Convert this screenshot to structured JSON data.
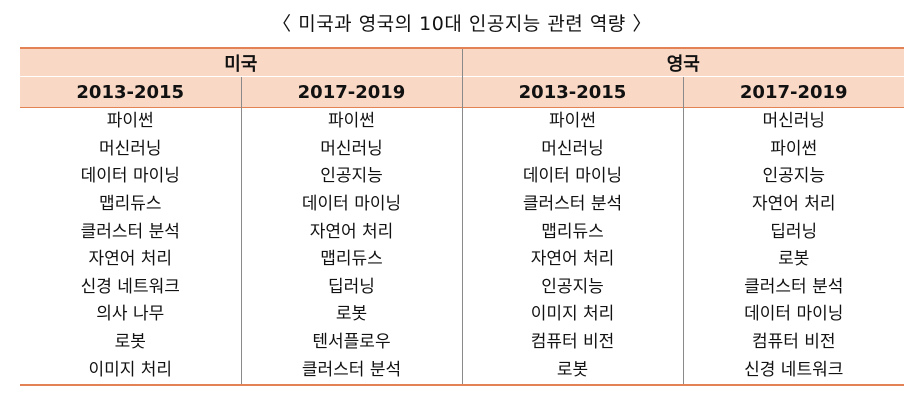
{
  "title": "〈 미국과 영국의 10대 인공지능 관련 역량 〉",
  "countries": [
    "미국",
    "영국"
  ],
  "periods": [
    "2013-2015",
    "2017-2019",
    "2013-2015",
    "2017-2019"
  ],
  "rows": [
    [
      "파이썬",
      "파이썬",
      "파이썬",
      "머신러닝"
    ],
    [
      "머신러닝",
      "머신러닝",
      "머신러닝",
      "파이썬"
    ],
    [
      "데이터 마이닝",
      "인공지능",
      "데이터 마이닝",
      "인공지능"
    ],
    [
      "맵리듀스",
      "데이터 마이닝",
      "클러스터 분석",
      "자연어 처리"
    ],
    [
      "클러스터 분석",
      "자연어 처리",
      "맵리듀스",
      "딥러닝"
    ],
    [
      "자연어 처리",
      "맵리듀스",
      "자연어 처리",
      "로봇"
    ],
    [
      "신경 네트워크",
      "딥러닝",
      "인공지능",
      "클러스터 분석"
    ],
    [
      "의사 나무",
      "로봇",
      "이미지 처리",
      "데이터 마이닝"
    ],
    [
      "로봇",
      "텐서플로우",
      "컴퓨터 비전",
      "컴퓨터 비전"
    ],
    [
      "이미지 처리",
      "클러스터 분석",
      "로봇",
      "신경 네트워크"
    ]
  ]
}
